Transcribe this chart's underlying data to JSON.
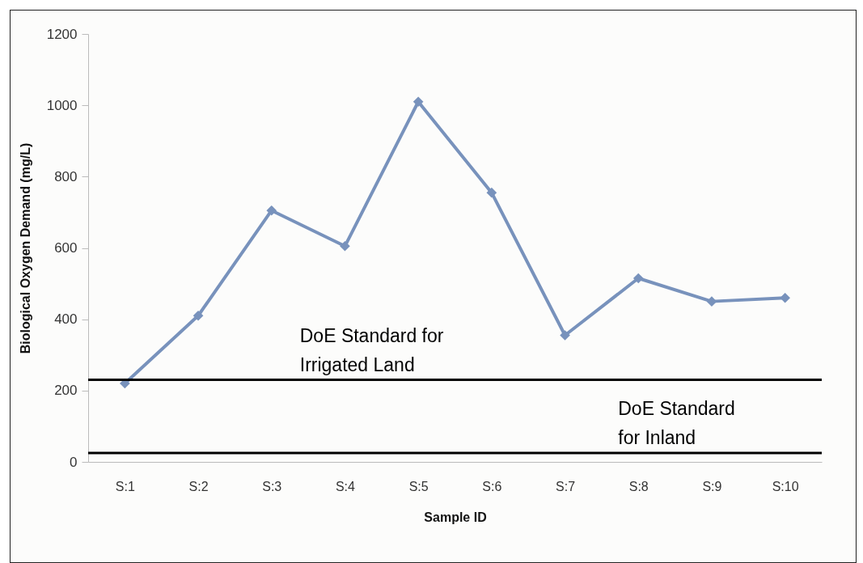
{
  "chart_data": {
    "type": "line",
    "xlabel": "Sample ID",
    "ylabel": "Biological Oxygen Demand (mg/L)",
    "categories": [
      "S:1",
      "S:2",
      "S:3",
      "S:4",
      "S:5",
      "S:6",
      "S:7",
      "S:8",
      "S:9",
      "S:10"
    ],
    "series": [
      {
        "color": "#7892bc",
        "values": [
          220,
          410,
          705,
          605,
          1010,
          755,
          355,
          515,
          450,
          460
        ]
      }
    ],
    "ylim": [
      0,
      1200
    ],
    "yticks": [
      0,
      200,
      400,
      600,
      800,
      1000,
      1200
    ],
    "grid": false,
    "marker": "diamond",
    "line_style": "solid",
    "ref_lines": [
      {
        "axis": "y",
        "value": 230,
        "label": "DoE Standard for Irrigated Land",
        "color": "#000000"
      },
      {
        "axis": "y",
        "value": 25,
        "label": "DoE Standard for Inland",
        "color": "#000000"
      }
    ]
  }
}
